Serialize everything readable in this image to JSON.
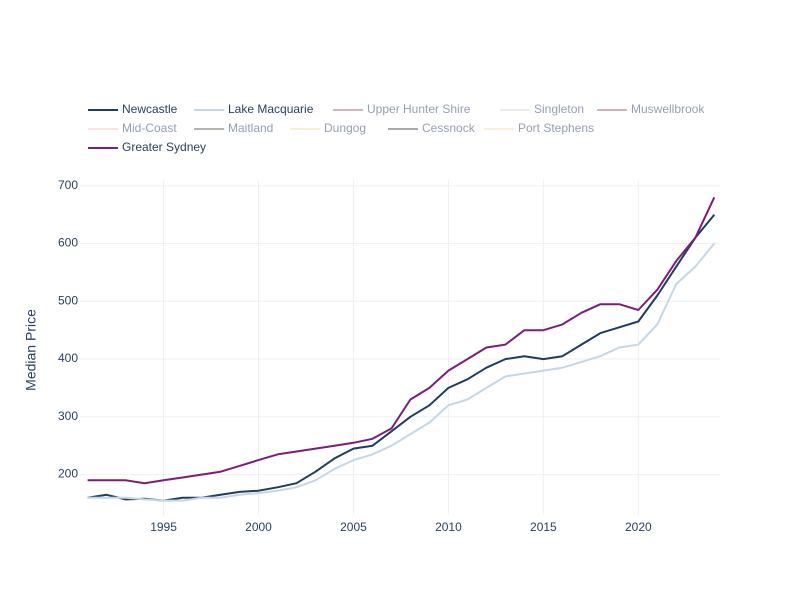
{
  "chart_data": {
    "type": "line",
    "y_label": "Median Price",
    "x": [
      1991,
      1992,
      1993,
      1994,
      1995,
      1996,
      1997,
      1998,
      1999,
      2000,
      2001,
      2002,
      2003,
      2004,
      2005,
      2006,
      2007,
      2008,
      2009,
      2010,
      2011,
      2012,
      2013,
      2014,
      2015,
      2016,
      2017,
      2018,
      2019,
      2020,
      2021,
      2022,
      2023,
      2024
    ],
    "series": [
      {
        "name": "Newcastle",
        "color": "#1f3d5c",
        "values": [
          160,
          165,
          157,
          158,
          155,
          160,
          160,
          165,
          170,
          172,
          178,
          185,
          205,
          228,
          245,
          250,
          275,
          300,
          320,
          350,
          365,
          385,
          400,
          405,
          400,
          405,
          425,
          445,
          455,
          465,
          510,
          560,
          610,
          650
        ]
      },
      {
        "name": "Lake Macquarie",
        "color": "#c6d6e6",
        "values": [
          160,
          160,
          160,
          157,
          155,
          155,
          160,
          160,
          165,
          168,
          172,
          178,
          190,
          210,
          225,
          235,
          250,
          270,
          290,
          320,
          330,
          350,
          370,
          375,
          380,
          385,
          395,
          405,
          420,
          425,
          460,
          530,
          560,
          600
        ]
      },
      {
        "name": "Upper Hunter Shire",
        "color": "#a0707a",
        "visible": "legendonly"
      },
      {
        "name": "Singleton",
        "color": "#d8d8d8",
        "visible": "legendonly"
      },
      {
        "name": "Muswellbrook",
        "color": "#a06a78",
        "visible": "legendonly"
      },
      {
        "name": "Mid-Coast",
        "color": "#f5c9c0",
        "visible": "legendonly"
      },
      {
        "name": "Maitland",
        "color": "#6e6e5e",
        "visible": "legendonly"
      },
      {
        "name": "Dungog",
        "color": "#ede6a8",
        "visible": "legendonly"
      },
      {
        "name": "Cessnock",
        "color": "#555555",
        "visible": "legendonly"
      },
      {
        "name": "Port Stephens",
        "color": "#f2e3c0",
        "visible": "legendonly"
      },
      {
        "name": "Greater Sydney",
        "color": "#7b1e7a",
        "values": [
          190,
          190,
          190,
          185,
          190,
          195,
          200,
          205,
          215,
          225,
          235,
          240,
          245,
          250,
          255,
          262,
          280,
          330,
          350,
          380,
          400,
          420,
          425,
          450,
          450,
          460,
          480,
          495,
          495,
          485,
          520,
          570,
          610,
          680
        ]
      }
    ],
    "xlim": [
      1990.6,
      2024.3
    ],
    "xticks": [
      1995,
      2000,
      2005,
      2010,
      2015,
      2020
    ],
    "ylim": [
      130,
      710
    ],
    "yticks": [
      200,
      300,
      400,
      500,
      600,
      700
    ],
    "grid": true,
    "legend": "top"
  }
}
